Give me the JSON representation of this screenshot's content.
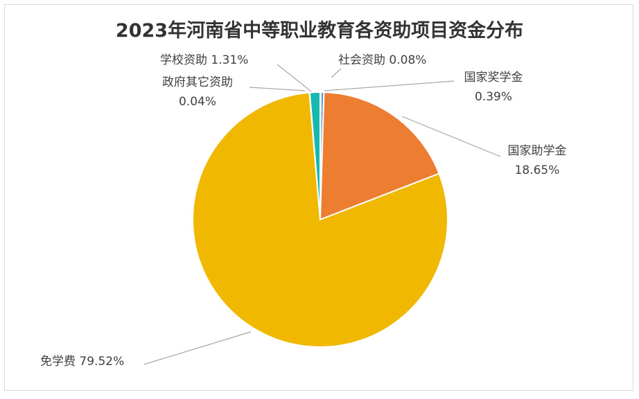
{
  "chart_data": {
    "type": "pie",
    "title": "2023年河南省中等职业教育各资助项目资金分布",
    "slices": [
      {
        "label": "社会资助",
        "percent_text": "0.08%",
        "value": 0.08,
        "color": "#4472C4"
      },
      {
        "label": "国家奖学金",
        "percent_text": "0.39%",
        "value": 0.39,
        "color": "#5B9BD5"
      },
      {
        "label": "国家助学金",
        "percent_text": "18.65%",
        "value": 18.65,
        "color": "#ED7D31"
      },
      {
        "label": "免学费",
        "percent_text": "79.52%",
        "value": 79.52,
        "color": "#F0B800"
      },
      {
        "label": "政府其它资助",
        "percent_text": "0.04%",
        "value": 0.04,
        "color": "#A5A5A5"
      },
      {
        "label": "学校资助",
        "percent_text": "1.31%",
        "value": 1.31,
        "color": "#17B8B0"
      }
    ],
    "legend": "none"
  }
}
